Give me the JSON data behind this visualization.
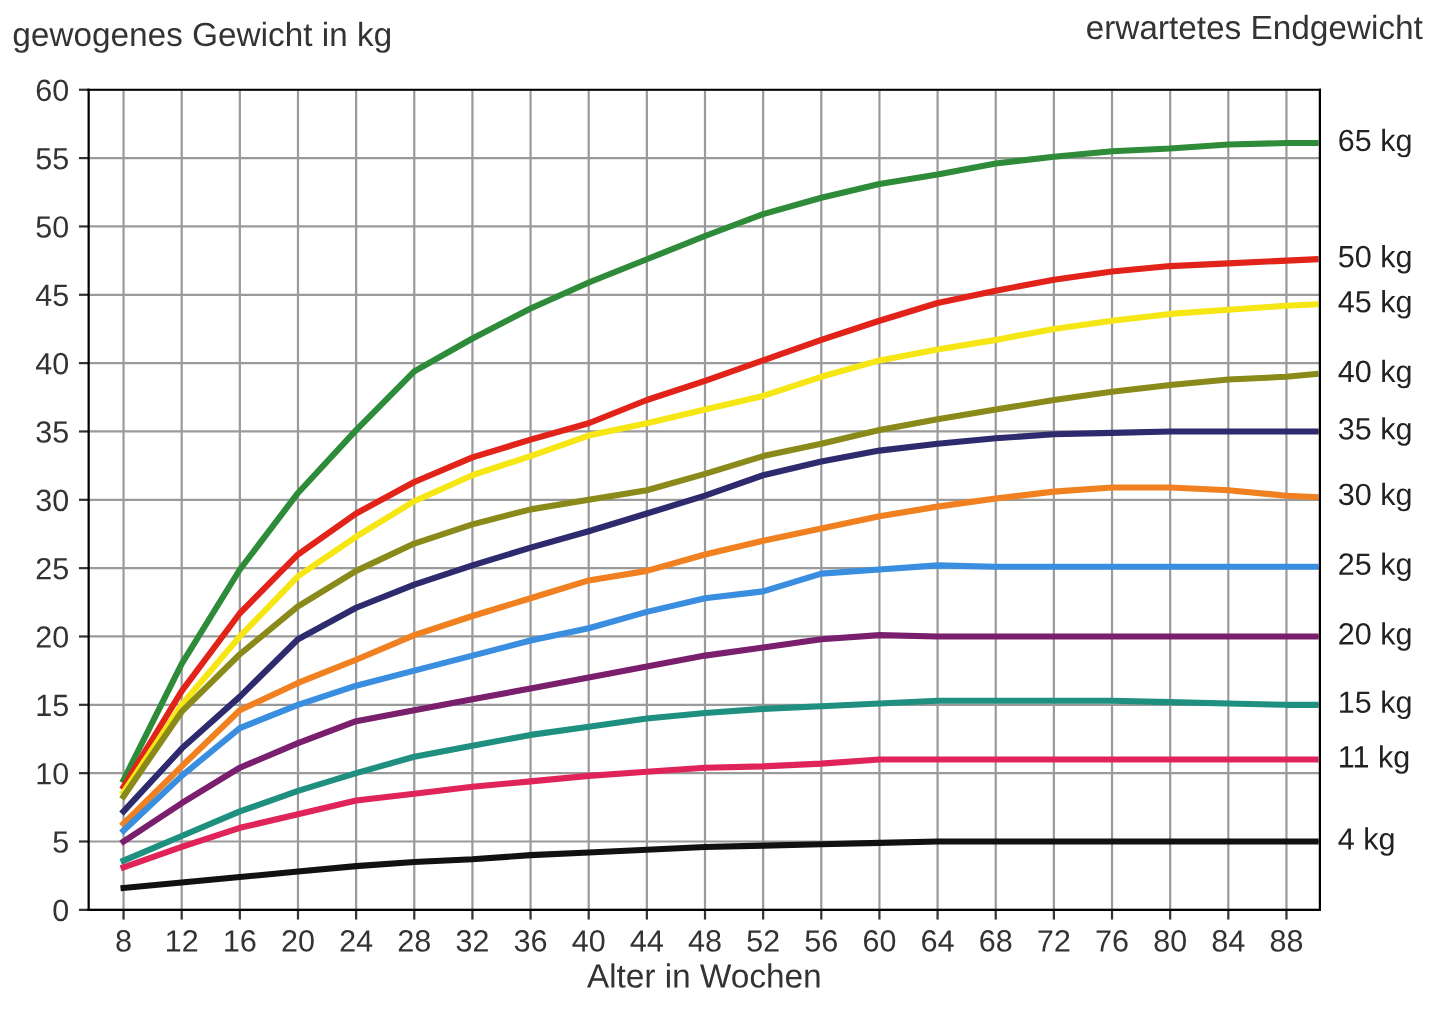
{
  "chart_data": {
    "type": "line",
    "xlabel": "Alter in Wochen",
    "ylabel": "gewogenes Gewicht in kg",
    "annotations": [
      "erwartetes Endgewicht"
    ],
    "x": [
      8,
      12,
      16,
      20,
      24,
      28,
      32,
      36,
      40,
      44,
      48,
      52,
      56,
      60,
      64,
      68,
      72,
      76,
      80,
      84,
      88,
      90
    ],
    "xlim": [
      5.6,
      90.3
    ],
    "xticks": [
      8,
      12,
      16,
      20,
      24,
      28,
      32,
      36,
      40,
      44,
      48,
      52,
      56,
      60,
      64,
      68,
      72,
      76,
      80,
      84,
      88
    ],
    "ylim": [
      0,
      60
    ],
    "yticks": [
      0,
      5,
      10,
      15,
      20,
      25,
      30,
      35,
      40,
      45,
      50,
      55,
      60
    ],
    "grid": true,
    "legend": false,
    "marker": "none",
    "line_style": "solid",
    "series": [
      {
        "name": "65 kg",
        "color": "#2e8b3a",
        "values": [
          9.5,
          18.0,
          24.9,
          30.5,
          35.1,
          39.4,
          41.8,
          44.0,
          45.9,
          47.6,
          49.3,
          50.9,
          52.1,
          53.1,
          53.8,
          54.6,
          55.1,
          55.5,
          55.7,
          56.0,
          56.1,
          56.1
        ]
      },
      {
        "name": "50 kg",
        "color": "#e2231a",
        "values": [
          9.0,
          16.0,
          21.7,
          26.0,
          29.0,
          31.3,
          33.1,
          34.4,
          35.6,
          37.3,
          38.7,
          40.2,
          41.7,
          43.1,
          44.4,
          45.3,
          46.1,
          46.7,
          47.1,
          47.3,
          47.5,
          47.6
        ]
      },
      {
        "name": "45 kg",
        "color": "#f5e614",
        "values": [
          8.6,
          15.0,
          20.0,
          24.4,
          27.3,
          29.9,
          31.8,
          33.2,
          34.7,
          35.6,
          36.6,
          37.6,
          39.0,
          40.2,
          41.0,
          41.7,
          42.5,
          43.1,
          43.6,
          43.9,
          44.2,
          44.3
        ]
      },
      {
        "name": "40 kg",
        "color": "#8a8a1a",
        "values": [
          8.3,
          14.5,
          18.7,
          22.2,
          24.8,
          26.8,
          28.2,
          29.3,
          30.0,
          30.7,
          31.9,
          33.2,
          34.1,
          35.1,
          35.9,
          36.6,
          37.3,
          37.9,
          38.4,
          38.8,
          39.0,
          39.2
        ]
      },
      {
        "name": "35 kg",
        "color": "#2e2a6e",
        "values": [
          7.2,
          11.8,
          15.6,
          19.8,
          22.1,
          23.8,
          25.2,
          26.5,
          27.7,
          29.0,
          30.3,
          31.8,
          32.8,
          33.6,
          34.1,
          34.5,
          34.8,
          34.9,
          35.0,
          35.0,
          35.0,
          35.0
        ]
      },
      {
        "name": "30 kg",
        "color": "#f08020",
        "values": [
          6.3,
          10.5,
          14.6,
          16.6,
          18.3,
          20.1,
          21.5,
          22.8,
          24.1,
          24.8,
          26.0,
          27.0,
          27.9,
          28.8,
          29.5,
          30.1,
          30.6,
          30.9,
          30.9,
          30.7,
          30.3,
          30.2
        ]
      },
      {
        "name": "25 kg",
        "color": "#3a8ee0",
        "values": [
          5.8,
          9.8,
          13.3,
          15.0,
          16.4,
          17.5,
          18.6,
          19.7,
          20.6,
          21.8,
          22.8,
          23.3,
          24.6,
          24.9,
          25.2,
          25.1,
          25.1,
          25.1,
          25.1,
          25.1,
          25.1,
          25.1
        ]
      },
      {
        "name": "20 kg",
        "color": "#7a1f6e",
        "values": [
          5.0,
          7.8,
          10.4,
          12.2,
          13.8,
          14.6,
          15.4,
          16.2,
          17.0,
          17.8,
          18.6,
          19.2,
          19.8,
          20.1,
          20.0,
          20.0,
          20.0,
          20.0,
          20.0,
          20.0,
          20.0,
          20.0
        ]
      },
      {
        "name": "15 kg",
        "color": "#1f9080",
        "values": [
          3.6,
          5.4,
          7.2,
          8.7,
          10.0,
          11.2,
          12.0,
          12.8,
          13.4,
          14.0,
          14.4,
          14.7,
          14.9,
          15.1,
          15.3,
          15.3,
          15.3,
          15.3,
          15.2,
          15.1,
          15.0,
          15.0
        ]
      },
      {
        "name": "11 kg",
        "color": "#e0245a",
        "values": [
          3.1,
          4.6,
          6.0,
          7.0,
          8.0,
          8.5,
          9.0,
          9.4,
          9.8,
          10.1,
          10.4,
          10.5,
          10.7,
          11.0,
          11.0,
          11.0,
          11.0,
          11.0,
          11.0,
          11.0,
          11.0,
          11.0
        ]
      },
      {
        "name": "4 kg",
        "color": "#111111",
        "values": [
          1.6,
          2.0,
          2.4,
          2.8,
          3.2,
          3.5,
          3.7,
          4.0,
          4.2,
          4.4,
          4.6,
          4.7,
          4.8,
          4.9,
          5.0,
          5.0,
          5.0,
          5.0,
          5.0,
          5.0,
          5.0,
          5.0
        ]
      }
    ]
  }
}
